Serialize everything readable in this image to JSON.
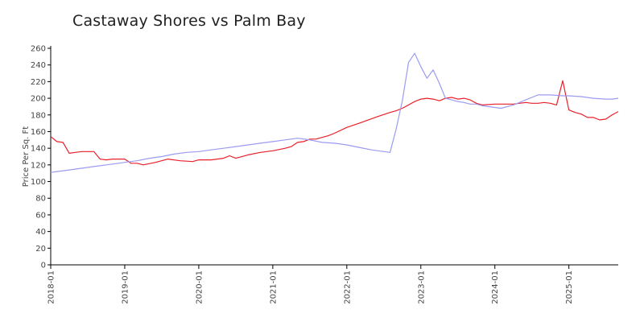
{
  "chart_data": {
    "type": "line",
    "title": "Castaway Shores vs Palm Bay",
    "xlabel": "",
    "ylabel": "Price Per Sq. Ft",
    "ylim": [
      0,
      260
    ],
    "y_ticks": [
      0,
      20,
      40,
      60,
      80,
      100,
      120,
      140,
      160,
      180,
      200,
      220,
      240,
      260
    ],
    "x_ticks": [
      "2018-01",
      "2019-01",
      "2020-01",
      "2021-01",
      "2022-01",
      "2023-01",
      "2024-01",
      "2025-01"
    ],
    "x_range": [
      "2018-01",
      "2025-09"
    ],
    "grid": false,
    "legend": "none",
    "series": [
      {
        "color": "#e8202a",
        "x": [
          "2018-01",
          "2018-02",
          "2018-03",
          "2018-04",
          "2018-05",
          "2018-06",
          "2018-08",
          "2018-09",
          "2018-10",
          "2018-11",
          "2018-12",
          "2019-01",
          "2019-02",
          "2019-03",
          "2019-04",
          "2019-06",
          "2019-08",
          "2019-10",
          "2019-12",
          "2020-01",
          "2020-03",
          "2020-05",
          "2020-06",
          "2020-07",
          "2020-09",
          "2020-11",
          "2021-01",
          "2021-03",
          "2021-04",
          "2021-05",
          "2021-06",
          "2021-07",
          "2021-08",
          "2021-10",
          "2021-11",
          "2022-01",
          "2022-03",
          "2022-06",
          "2022-08",
          "2022-09",
          "2022-10",
          "2022-12",
          "2023-01",
          "2023-02",
          "2023-03",
          "2023-04",
          "2023-05",
          "2023-06",
          "2023-07",
          "2023-08",
          "2023-09",
          "2023-10",
          "2023-11",
          "2024-01",
          "2024-03",
          "2024-04",
          "2024-05",
          "2024-06",
          "2024-07",
          "2024-08",
          "2024-09",
          "2024-10",
          "2024-11",
          "2024-12",
          "2025-01",
          "2025-02",
          "2025-03",
          "2025-04",
          "2025-05",
          "2025-06",
          "2025-07",
          "2025-08",
          "2025-09"
        ],
        "values": [
          154,
          148,
          147,
          134,
          135,
          136,
          136,
          127,
          126,
          127,
          127,
          127,
          122,
          122,
          120,
          123,
          127,
          125,
          124,
          126,
          126,
          128,
          131,
          128,
          132,
          135,
          137,
          140,
          142,
          147,
          148,
          151,
          151,
          155,
          158,
          165,
          170,
          178,
          183,
          185,
          188,
          196,
          199,
          200,
          199,
          197,
          200,
          201,
          199,
          200,
          198,
          194,
          192,
          193,
          193,
          193,
          194,
          195,
          194,
          194,
          195,
          194,
          192,
          221,
          186,
          183,
          181,
          177,
          177,
          174,
          175,
          180,
          184
        ]
      },
      {
        "color": "#9b9bf0",
        "x": [
          "2018-01",
          "2018-02",
          "2018-04",
          "2018-06",
          "2018-08",
          "2018-10",
          "2018-12",
          "2019-01",
          "2019-03",
          "2019-05",
          "2019-07",
          "2019-09",
          "2019-11",
          "2020-01",
          "2020-03",
          "2020-05",
          "2020-07",
          "2020-09",
          "2020-11",
          "2021-01",
          "2021-03",
          "2021-05",
          "2021-07",
          "2021-09",
          "2021-11",
          "2022-01",
          "2022-03",
          "2022-05",
          "2022-07",
          "2022-08",
          "2022-09",
          "2022-10",
          "2022-11",
          "2022-12",
          "2023-01",
          "2023-02",
          "2023-03",
          "2023-04",
          "2023-05",
          "2023-06",
          "2023-07",
          "2023-08",
          "2023-09",
          "2023-10",
          "2023-11",
          "2024-01",
          "2024-02",
          "2024-04",
          "2024-06",
          "2024-07",
          "2024-08",
          "2024-10",
          "2024-12",
          "2025-01",
          "2025-03",
          "2025-05",
          "2025-07",
          "2025-08",
          "2025-09"
        ],
        "values": [
          111,
          112,
          114,
          116,
          118,
          120,
          122,
          123,
          125,
          128,
          130,
          133,
          135,
          136,
          138,
          140,
          142,
          144,
          146,
          148,
          150,
          152,
          150,
          147,
          146,
          144,
          141,
          138,
          136,
          135,
          163,
          197,
          243,
          254,
          238,
          224,
          234,
          218,
          200,
          198,
          196,
          195,
          193,
          193,
          191,
          189,
          188,
          192,
          198,
          201,
          204,
          204,
          203,
          203,
          202,
          200,
          199,
          199,
          200
        ]
      }
    ]
  }
}
